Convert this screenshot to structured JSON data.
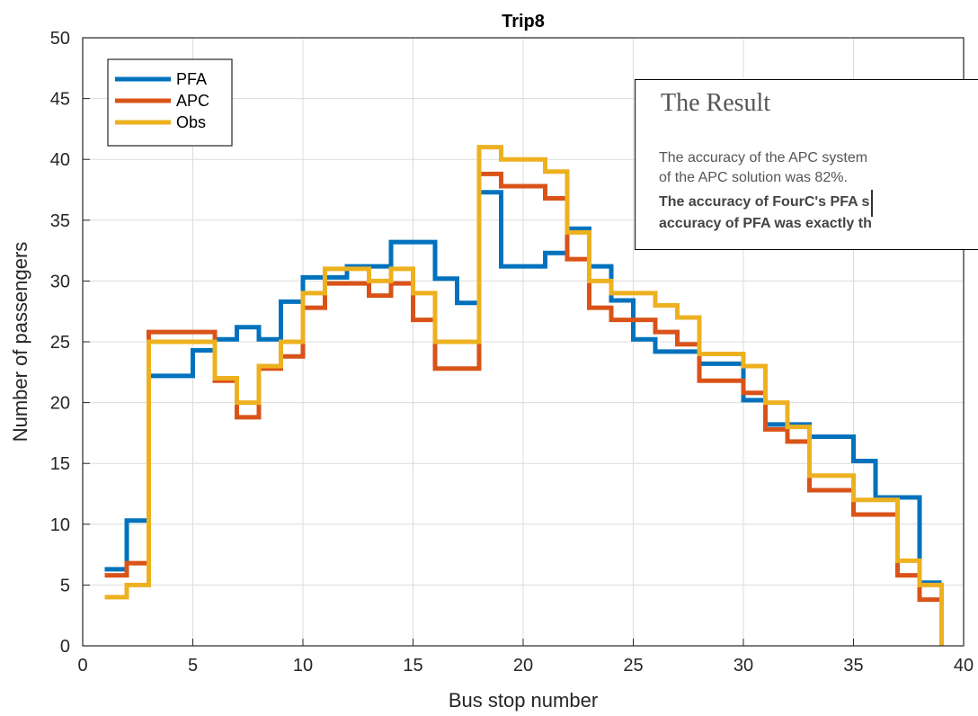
{
  "chart_data": {
    "type": "line",
    "title": "Trip8",
    "xlabel": "Bus stop number",
    "ylabel": "Number of passengers",
    "xlim": [
      0,
      40
    ],
    "ylim": [
      0,
      50
    ],
    "xticks": [
      0,
      5,
      10,
      15,
      20,
      25,
      30,
      35,
      40
    ],
    "yticks": [
      0,
      5,
      10,
      15,
      20,
      25,
      30,
      35,
      40,
      45,
      50
    ],
    "grid": true,
    "legend_position": "top-left",
    "step": true,
    "series": [
      {
        "name": "PFA",
        "color": "#0072BD",
        "x": [
          1,
          2,
          3,
          4,
          5,
          6,
          7,
          8,
          9,
          10,
          11,
          12,
          13,
          14,
          15,
          16,
          17,
          18,
          19,
          20,
          21,
          22,
          23,
          24,
          25,
          26,
          27,
          28,
          29,
          30,
          31,
          32,
          33,
          34,
          35,
          36,
          37,
          38,
          39
        ],
        "values": [
          6.3,
          10.3,
          22.2,
          22.2,
          24.3,
          25.2,
          26.2,
          25.2,
          28.3,
          30.3,
          30.3,
          31.2,
          31.2,
          33.2,
          33.2,
          30.2,
          28.2,
          37.3,
          31.2,
          31.2,
          32.3,
          34.3,
          31.2,
          28.4,
          25.2,
          24.2,
          24.2,
          23.2,
          23.2,
          20.2,
          18.2,
          18.2,
          17.2,
          17.2,
          15.2,
          12.2,
          12.2,
          5.2,
          5.2
        ]
      },
      {
        "name": "APC",
        "color": "#D95319",
        "x": [
          1,
          2,
          3,
          4,
          5,
          6,
          7,
          8,
          9,
          10,
          11,
          12,
          13,
          14,
          15,
          16,
          17,
          18,
          19,
          20,
          21,
          22,
          23,
          24,
          25,
          26,
          27,
          28,
          29,
          30,
          31,
          32,
          33,
          34,
          35,
          36,
          37,
          38,
          39
        ],
        "values": [
          5.8,
          6.8,
          25.8,
          25.8,
          25.8,
          21.8,
          18.8,
          22.8,
          23.8,
          27.8,
          29.8,
          29.8,
          28.8,
          29.8,
          26.8,
          22.8,
          22.8,
          38.8,
          37.8,
          37.8,
          36.8,
          31.8,
          27.8,
          26.8,
          26.8,
          25.8,
          24.8,
          21.8,
          21.8,
          20.8,
          17.8,
          16.8,
          12.8,
          12.8,
          10.8,
          10.8,
          5.8,
          3.8,
          3.8
        ]
      },
      {
        "name": "Obs",
        "color": "#EDB120",
        "x": [
          1,
          2,
          3,
          4,
          5,
          6,
          7,
          8,
          9,
          10,
          11,
          12,
          13,
          14,
          15,
          16,
          17,
          18,
          19,
          20,
          21,
          22,
          23,
          24,
          25,
          26,
          27,
          28,
          29,
          30,
          31,
          32,
          33,
          34,
          35,
          36,
          37,
          38,
          39
        ],
        "values": [
          4,
          5,
          25,
          25,
          25,
          22,
          20,
          23,
          25,
          29,
          31,
          31,
          30,
          31,
          29,
          25,
          25,
          41,
          40,
          40,
          39,
          34,
          30,
          29,
          29,
          28,
          27,
          24,
          24,
          23,
          20,
          18,
          14,
          14,
          12,
          12,
          7,
          5,
          0
        ]
      }
    ]
  },
  "overlay": {
    "title": "The Result",
    "paragraph1_line1": "The accuracy of the APC system",
    "paragraph1_line2": "of the APC solution was 82%.",
    "paragraph2_line1": "The accuracy of FourC's PFA s",
    "paragraph2_line2": "accuracy of PFA was exactly th"
  }
}
